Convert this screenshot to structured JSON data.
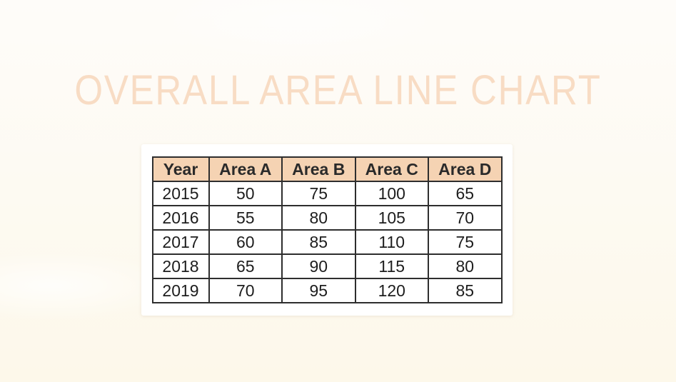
{
  "page": {
    "title": "OVERALL AREA LINE CHART"
  },
  "colors": {
    "background_top": "#fefcf9",
    "background_bottom": "#fdf8ea",
    "title_text": "#f8dcc4",
    "card_background": "#ffffff",
    "header_background": "#f5d3b3",
    "table_border": "#2e2e2e",
    "cell_text": "#1d1d1d"
  },
  "table": {
    "columns": [
      "Year",
      "Area A",
      "Area B",
      "Area C",
      "Area D"
    ],
    "rows": [
      [
        "2015",
        "50",
        "75",
        "100",
        "65"
      ],
      [
        "2016",
        "55",
        "80",
        "105",
        "70"
      ],
      [
        "2017",
        "60",
        "85",
        "110",
        "75"
      ],
      [
        "2018",
        "65",
        "90",
        "115",
        "80"
      ],
      [
        "2019",
        "70",
        "95",
        "120",
        "85"
      ]
    ]
  },
  "chart_data": {
    "type": "table",
    "title": "OVERALL AREA LINE CHART",
    "categories": [
      "2015",
      "2016",
      "2017",
      "2018",
      "2019"
    ],
    "series": [
      {
        "name": "Area A",
        "values": [
          50,
          55,
          60,
          65,
          70
        ]
      },
      {
        "name": "Area B",
        "values": [
          75,
          80,
          85,
          90,
          95
        ]
      },
      {
        "name": "Area C",
        "values": [
          100,
          105,
          110,
          115,
          120
        ]
      },
      {
        "name": "Area D",
        "values": [
          65,
          70,
          75,
          80,
          85
        ]
      }
    ]
  }
}
